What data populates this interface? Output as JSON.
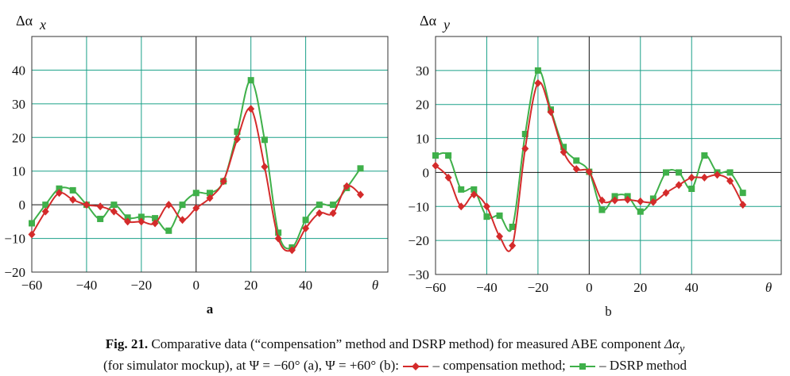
{
  "chart_data": [
    {
      "type": "line",
      "panel_label": "a",
      "ylabel": "Δα",
      "ylabel_sub": "x",
      "x_end_label": "θ",
      "xlim": [
        -60,
        70
      ],
      "ylim": [
        -20,
        50
      ],
      "x_ticks": [
        -60,
        -40,
        -20,
        0,
        20,
        40
      ],
      "x_tick_labels": [
        "−60",
        "−40",
        "−20",
        "0",
        "20",
        "40"
      ],
      "y_ticks": [
        -20,
        -10,
        0,
        10,
        20,
        30,
        40
      ],
      "y_tick_labels": [
        "−20",
        "−10",
        "0",
        "10",
        "20",
        "30",
        "40"
      ],
      "grid": true,
      "series": [
        {
          "name": "compensation method",
          "color": "#d42b2b",
          "marker": "diamond",
          "x": [
            -60,
            -55,
            -50,
            -45,
            -40,
            -35,
            -30,
            -25,
            -20,
            -15,
            -10,
            -5,
            0,
            5,
            10,
            15,
            20,
            25,
            30,
            35,
            40,
            45,
            50,
            55,
            60
          ],
          "y": [
            -8.8,
            -2,
            3.5,
            1.5,
            0,
            -0.5,
            -2,
            -5,
            -5,
            -5.5,
            0,
            -4.5,
            -1,
            2,
            7,
            19.5,
            28.5,
            11.3,
            -10,
            -13.5,
            -7,
            -2.5,
            -2.5,
            5.5,
            3
          ]
        },
        {
          "name": "DSRP method",
          "color": "#3fb04a",
          "marker": "square",
          "x": [
            -60,
            -55,
            -50,
            -45,
            -40,
            -35,
            -30,
            -25,
            -20,
            -15,
            -10,
            -5,
            0,
            5,
            10,
            15,
            20,
            25,
            30,
            35,
            40,
            45,
            50,
            55,
            60
          ],
          "y": [
            -5.5,
            0,
            4.8,
            4.3,
            0,
            -4.2,
            0,
            -3.8,
            -3.6,
            -4,
            -7.7,
            0,
            3.5,
            3.5,
            7,
            21.7,
            37,
            19.3,
            -8.3,
            -12.7,
            -4.5,
            0,
            0,
            5,
            10.8
          ]
        }
      ]
    },
    {
      "type": "line",
      "panel_label": "b",
      "ylabel": "Δα",
      "ylabel_sub": "y",
      "x_end_label": "θ",
      "xlim": [
        -60,
        75
      ],
      "ylim": [
        -30,
        40
      ],
      "x_ticks": [
        -60,
        -40,
        -20,
        0,
        20,
        40
      ],
      "x_tick_labels": [
        "−60",
        "−40",
        "−20",
        "0",
        "20",
        "40"
      ],
      "y_ticks": [
        -30,
        -20,
        -10,
        0,
        10,
        20,
        30
      ],
      "y_tick_labels": [
        "−30",
        "−20",
        "−10",
        "0",
        "10",
        "20",
        "30"
      ],
      "grid": true,
      "series": [
        {
          "name": "compensation method",
          "color": "#d42b2b",
          "marker": "diamond",
          "x": [
            -60,
            -55,
            -50,
            -45,
            -40,
            -35,
            -30,
            -25,
            -20,
            -15,
            -10,
            -5,
            0,
            5,
            10,
            15,
            20,
            25,
            30,
            35,
            40,
            45,
            50,
            55,
            60
          ],
          "y": [
            2,
            -1.5,
            -10,
            -6.5,
            -10,
            -18.8,
            -21.5,
            7,
            26.3,
            17.8,
            6,
            1,
            0.2,
            -8.2,
            -8.2,
            -8,
            -8.5,
            -8.7,
            -6,
            -3.7,
            -1.5,
            -1.5,
            -0.7,
            -2.5,
            -9.5
          ]
        },
        {
          "name": "DSRP method",
          "color": "#3fb04a",
          "marker": "square",
          "x": [
            -60,
            -55,
            -50,
            -45,
            -40,
            -35,
            -30,
            -25,
            -20,
            -15,
            -10,
            -5,
            0,
            5,
            10,
            15,
            20,
            25,
            30,
            35,
            40,
            45,
            50,
            55,
            60
          ],
          "y": [
            5,
            5,
            -5,
            -5,
            -13,
            -12.7,
            -16,
            11.3,
            30,
            18.5,
            7.5,
            3.5,
            0.2,
            -11,
            -7,
            -7,
            -11.5,
            -7.7,
            0,
            0,
            -4.8,
            5,
            0,
            0,
            -6
          ]
        }
      ]
    }
  ],
  "caption": {
    "fig_label": "Fig. 21.",
    "line1_text": "Comparative data (“compensation” method and DSRP method) for measured ABE component",
    "line1_symbol": "Δα",
    "line1_symbol_sub": "y",
    "line2_prefix": "(for simulator mockup), at  Ψ = −60°  (a),  Ψ = +60°  (b):",
    "legend_compensation": "– compensation method;",
    "legend_dsrp": "– DSRP method"
  }
}
